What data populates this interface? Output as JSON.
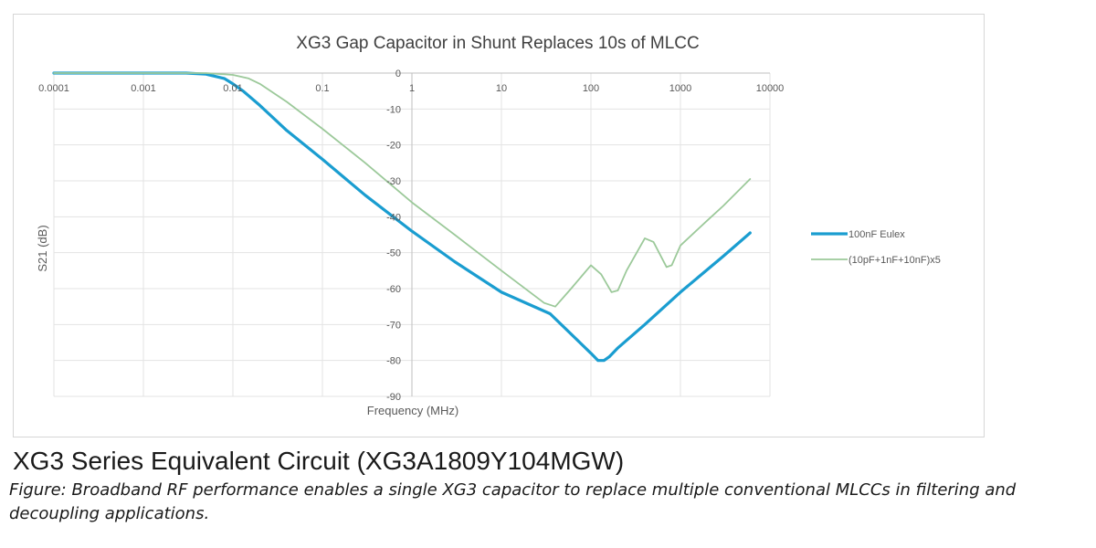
{
  "heading": "XG3 Series Equivalent Circuit (XG3A1809Y104MGW)",
  "caption": "Figure: Broadband RF performance enables a single XG3 capacitor to replace multiple conventional MLCCs in filtering and decoupling applications.",
  "chart_data": {
    "type": "line",
    "title": "XG3 Gap Capacitor in Shunt Replaces 10s of MLCC",
    "xlabel": "Frequency (MHz)",
    "ylabel": "S21 (dB)",
    "x_scale": "log",
    "xlim": [
      0.0001,
      10000
    ],
    "ylim": [
      -90,
      0
    ],
    "x_ticks": [
      0.0001,
      0.001,
      0.01,
      0.1,
      1,
      10,
      100,
      1000,
      10000
    ],
    "x_tick_labels": [
      "0.0001",
      "0.001",
      "0.01",
      "0.1",
      "1",
      "10",
      "100",
      "1000",
      "10000"
    ],
    "y_ticks": [
      0,
      -10,
      -20,
      -30,
      -40,
      -50,
      -60,
      -70,
      -80,
      -90
    ],
    "y_tick_labels": [
      "0",
      "-10",
      "-20",
      "-30",
      "-40",
      "-50",
      "-60",
      "-70",
      "-80",
      "-90"
    ],
    "grid": true,
    "legend_position": "right",
    "series": [
      {
        "name": "100nF Eulex",
        "color": "#1a9dd0",
        "x": [
          0.0001,
          0.001,
          0.003,
          0.005,
          0.008,
          0.01,
          0.013,
          0.02,
          0.04,
          0.1,
          0.3,
          1,
          3,
          10,
          35,
          100,
          120,
          140,
          160,
          200,
          400,
          1000,
          3000,
          6000
        ],
        "y": [
          0,
          0,
          0,
          -0.3,
          -1.5,
          -3,
          -5,
          -9,
          -16,
          -24,
          -34,
          -44,
          -52.5,
          -61,
          -67,
          -78,
          -80,
          -80,
          -79,
          -76.5,
          -70,
          -61,
          -51,
          -44.5
        ]
      },
      {
        "name": "(10pF+1nF+10nF)x5",
        "color": "#9cc99a",
        "x": [
          0.0001,
          0.001,
          0.003,
          0.005,
          0.01,
          0.015,
          0.02,
          0.04,
          0.1,
          0.3,
          1,
          3,
          10,
          30,
          40,
          60,
          100,
          130,
          170,
          200,
          250,
          400,
          500,
          700,
          800,
          1000,
          2000,
          3000,
          6000
        ],
        "y": [
          0,
          0,
          0,
          0,
          -0.5,
          -1.5,
          -3,
          -8,
          -15.5,
          -25,
          -36,
          -45,
          -55,
          -64,
          -65,
          -60,
          -53.5,
          -56,
          -61,
          -60.5,
          -55,
          -46,
          -47,
          -54,
          -53.5,
          -48,
          -41,
          -37,
          -29.5
        ]
      }
    ]
  }
}
